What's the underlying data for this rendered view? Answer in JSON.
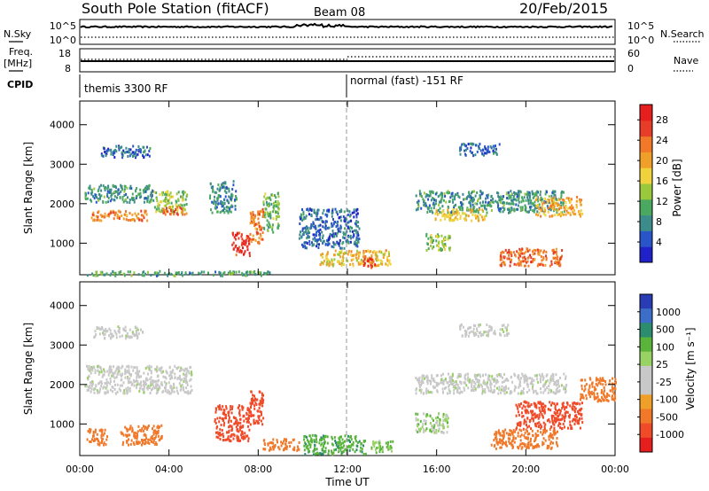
{
  "header": {
    "station": "South Pole Station (fitACF)",
    "beam": "Beam 08",
    "date": "20/Feb/2015"
  },
  "param_panels": {
    "nsky_label": "N.Sky",
    "nsky_ticks": [
      "10^5",
      "10^0"
    ],
    "nsearch_label": "N.Search",
    "nsearch_ticks": [
      "10^5",
      "10^0"
    ],
    "freq_label": "Freq.",
    "freq_unit": "[MHz]",
    "freq_ticks": [
      "18",
      "8"
    ],
    "nave_label": "Nave",
    "nave_ticks": [
      "60",
      "0"
    ],
    "cpid_label": "CPID",
    "cpid_left": "themis 3300 RF",
    "cpid_right": "normal (fast) -151 RF"
  },
  "colors": {
    "power": [
      "#1e22c8",
      "#2a55c8",
      "#3c8c8c",
      "#4aa860",
      "#9ac83c",
      "#f0d23c",
      "#f0a028",
      "#f07828",
      "#e63c28",
      "#e61e1e"
    ],
    "velocity": [
      "#2a3cb4",
      "#3c6ec8",
      "#2c8c6e",
      "#5ab43c",
      "#98d264",
      "#c8c8c8",
      "#c8c8c8",
      "#f0a028",
      "#f07828",
      "#f04a28",
      "#e61e1e"
    ]
  },
  "chart_data": [
    {
      "type": "heatmap",
      "panel": "power",
      "ylabel": "Slant Range [km]",
      "ylim": [
        200,
        4600
      ],
      "yticks": [
        "1000",
        "2000",
        "3000",
        "4000"
      ],
      "xlim_hours": [
        0,
        24
      ],
      "colorbar_label": "Power [dB]",
      "colorbar_ticks": [
        "28",
        "24",
        "20",
        "16",
        "12",
        "8",
        "4"
      ],
      "colorbar_range": [
        0,
        31
      ],
      "scatter_regions": [
        {
          "t": [
            0.2,
            3.3
          ],
          "r": [
            2050,
            2500
          ],
          "value": 9
        },
        {
          "t": [
            0.5,
            3.0
          ],
          "r": [
            1600,
            1850
          ],
          "value": 22
        },
        {
          "t": [
            3.3,
            4.8
          ],
          "r": [
            1800,
            2350
          ],
          "value": 14
        },
        {
          "t": [
            3.7,
            4.8
          ],
          "r": [
            1750,
            1950
          ],
          "value": 24
        },
        {
          "t": [
            5.8,
            7.0
          ],
          "r": [
            1800,
            2600
          ],
          "value": 8
        },
        {
          "t": [
            6.8,
            7.6
          ],
          "r": [
            700,
            1300
          ],
          "value": 28
        },
        {
          "t": [
            7.6,
            8.2
          ],
          "r": [
            1000,
            1900
          ],
          "value": 22
        },
        {
          "t": [
            8.2,
            8.9
          ],
          "r": [
            1300,
            2300
          ],
          "value": 12
        },
        {
          "t": [
            0.9,
            3.2
          ],
          "r": [
            3200,
            3500
          ],
          "value": 6
        },
        {
          "t": [
            10.7,
            13.9
          ],
          "r": [
            450,
            850
          ],
          "value": 18
        },
        {
          "t": [
            12.6,
            13.2
          ],
          "r": [
            400,
            700
          ],
          "value": 26
        },
        {
          "t": [
            15.0,
            21.7
          ],
          "r": [
            1800,
            2350
          ],
          "value": 9
        },
        {
          "t": [
            15.9,
            18.2
          ],
          "r": [
            1600,
            1900
          ],
          "value": 18
        },
        {
          "t": [
            20.4,
            22.5
          ],
          "r": [
            1700,
            2200
          ],
          "value": 20
        },
        {
          "t": [
            15.5,
            16.6
          ],
          "r": [
            850,
            1300
          ],
          "value": 14
        },
        {
          "t": [
            18.8,
            21.6
          ],
          "r": [
            450,
            900
          ],
          "value": 24
        },
        {
          "t": [
            17.0,
            18.8
          ],
          "r": [
            3250,
            3550
          ],
          "value": 6
        },
        {
          "t": [
            0.2,
            8.5
          ],
          "r": [
            200,
            320
          ],
          "value": 10
        },
        {
          "t": [
            9.8,
            12.5
          ],
          "r": [
            900,
            1900
          ],
          "value": 6
        }
      ]
    },
    {
      "type": "heatmap",
      "panel": "velocity",
      "ylabel": "Slant Range [km]",
      "ylim": [
        200,
        4600
      ],
      "yticks": [
        "1000",
        "2000",
        "3000",
        "4000"
      ],
      "xlabel": "Time UT",
      "xticks": [
        "00:00",
        "04:00",
        "08:00",
        "12:00",
        "16:00",
        "20:00",
        "00:00"
      ],
      "xlim_hours": [
        0,
        24
      ],
      "colorbar_label": "Velocity [m s⁻¹]",
      "colorbar_ticks": [
        "1000",
        "500",
        "100",
        "25",
        "-25",
        "-100",
        "-500",
        "-1000"
      ],
      "scatter_regions": [
        {
          "t": [
            0.2,
            5.0
          ],
          "r": [
            1800,
            2500
          ],
          "value": 0
        },
        {
          "t": [
            0.3,
            1.2
          ],
          "r": [
            500,
            900
          ],
          "value": -400
        },
        {
          "t": [
            1.8,
            3.7
          ],
          "r": [
            500,
            1000
          ],
          "value": -300
        },
        {
          "t": [
            6.0,
            7.6
          ],
          "r": [
            600,
            1500
          ],
          "value": -900
        },
        {
          "t": [
            7.6,
            8.2
          ],
          "r": [
            1000,
            1900
          ],
          "value": -600
        },
        {
          "t": [
            8.2,
            9.8
          ],
          "r": [
            350,
            650
          ],
          "value": -300
        },
        {
          "t": [
            10.0,
            12.8
          ],
          "r": [
            250,
            750
          ],
          "value": 80
        },
        {
          "t": [
            13.0,
            14.0
          ],
          "r": [
            300,
            600
          ],
          "value": 50
        },
        {
          "t": [
            15.0,
            21.8
          ],
          "r": [
            1800,
            2300
          ],
          "value": 0
        },
        {
          "t": [
            15.0,
            16.5
          ],
          "r": [
            800,
            1300
          ],
          "value": 30
        },
        {
          "t": [
            18.4,
            21.4
          ],
          "r": [
            400,
            900
          ],
          "value": -400
        },
        {
          "t": [
            19.5,
            22.5
          ],
          "r": [
            900,
            1600
          ],
          "value": -700
        },
        {
          "t": [
            22.4,
            24.0
          ],
          "r": [
            1600,
            2200
          ],
          "value": -250
        },
        {
          "t": [
            0.6,
            2.8
          ],
          "r": [
            3200,
            3500
          ],
          "value": 0
        },
        {
          "t": [
            17.0,
            19.2
          ],
          "r": [
            3250,
            3550
          ],
          "value": 0
        }
      ]
    }
  ]
}
